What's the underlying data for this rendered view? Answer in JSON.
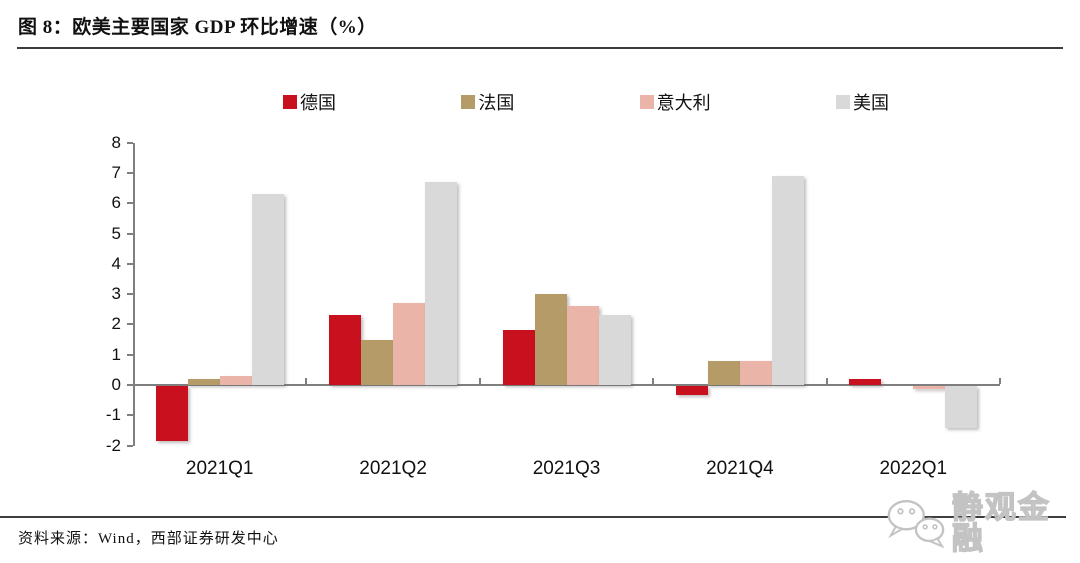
{
  "page": {
    "title": "图 8：欧美主要国家 GDP 环比增速（%）",
    "source": "资料来源：Wind，西部证券研发中心",
    "watermark_text": "静观金融",
    "watermark_icon": "wechat-icon",
    "rule_color": "#3d3d3d",
    "axis_color": "#7f7f7f"
  },
  "chart_data": {
    "type": "bar",
    "title": "欧美主要国家 GDP 环比增速（%）",
    "xlabel": "",
    "ylabel": "",
    "categories": [
      "2021Q1",
      "2021Q2",
      "2021Q3",
      "2021Q4",
      "2022Q1"
    ],
    "series": [
      {
        "name": "德国",
        "color": "#C8101E",
        "values": [
          -1.8,
          2.3,
          1.8,
          -0.3,
          0.2
        ]
      },
      {
        "name": "法国",
        "color": "#B49B68",
        "values": [
          0.2,
          1.5,
          3.0,
          0.8,
          0.0
        ]
      },
      {
        "name": "意大利",
        "color": "#EAB4A8",
        "values": [
          0.3,
          2.7,
          2.6,
          0.8,
          -0.1
        ]
      },
      {
        "name": "美国",
        "color": "#D9D9D9",
        "values": [
          6.3,
          6.7,
          2.3,
          6.9,
          -1.4
        ]
      }
    ],
    "ylim": [
      -2,
      8
    ],
    "ytick_step": 1,
    "grid": false,
    "legend_position": "top"
  }
}
